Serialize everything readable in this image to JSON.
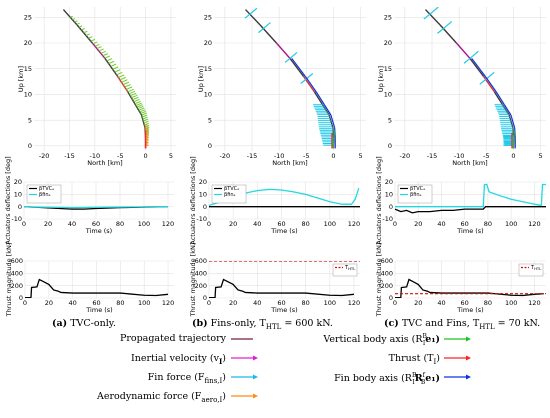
{
  "captions": [
    {
      "tag": "(a)",
      "text": "TVC-only."
    },
    {
      "tag": "(b)",
      "text": "Fins-only, T",
      "sub": "HTL",
      "rest": " = 600 kN."
    },
    {
      "tag": "(c)",
      "text": "TVC and Fins, T",
      "sub": "HTL",
      "rest": " = 70 kN."
    }
  ],
  "legend": {
    "items": [
      {
        "label": "Propagated trajectory",
        "color": "#7a1e3a",
        "kind": "line"
      },
      {
        "label": "Inertial velocity (v",
        "sub": "I",
        "tail": ")",
        "color": "#e020d0",
        "kind": "arrow"
      },
      {
        "label": "Fin force (F",
        "sub": "fins,I",
        "tail": ")",
        "color": "#20b8e8",
        "kind": "arrow"
      },
      {
        "label": "Aerodynamic force (F",
        "sub": "aero,I",
        "tail": ")",
        "color": "#ff8c1a",
        "kind": "arrow"
      },
      {
        "label": "Vertical body axis (R",
        "sup": "B",
        "sub2": "I",
        "tail": "e₁)",
        "color": "#22c022",
        "kind": "arrow"
      },
      {
        "label": "Thrust (T",
        "sub": "I",
        "tail": ")",
        "color": "#ff2020",
        "kind": "arrow"
      },
      {
        "label": "Fin body axis (R",
        "sup": "B",
        "sub2": "I",
        "mid": "R",
        "sup2": "f",
        "sub3": "B",
        "tail": "e₁)",
        "color": "#1030e0",
        "kind": "arrow"
      }
    ]
  },
  "chart_data": [
    {
      "type": "line",
      "id": "traj-a",
      "xlabel": "North [km]",
      "ylabel": "Up [km]",
      "xlim": [
        -22,
        6
      ],
      "ylim": [
        -1,
        27
      ],
      "xticks": [
        -20,
        -15,
        -10,
        -5,
        0,
        5
      ],
      "yticks": [
        0,
        5,
        10,
        15,
        20,
        25
      ],
      "grid": true,
      "series": [
        {
          "x": [
            -16.2,
            -13.5,
            -10.5,
            -8,
            -5.5,
            -3.5,
            -2,
            -0.8,
            -0.1,
            0,
            0
          ],
          "y": [
            26.5,
            23.5,
            20,
            17,
            13.5,
            10.5,
            8,
            6,
            3.5,
            1.5,
            -0.5
          ]
        }
      ]
    },
    {
      "type": "line",
      "id": "traj-b",
      "xlabel": "North [km]",
      "ylabel": "Up [km]",
      "xlim": [
        -22,
        6
      ],
      "ylim": [
        -1,
        27
      ],
      "xticks": [
        -20,
        -15,
        -10,
        -5,
        0,
        5
      ],
      "yticks": [
        0,
        5,
        10,
        15,
        20,
        25
      ],
      "grid": true,
      "series": [
        {
          "x": [
            -16.2,
            -13.5,
            -10.5,
            -8,
            -5.5,
            -3.5,
            -2,
            -0.8,
            -0.1,
            0,
            0
          ],
          "y": [
            26.5,
            23.5,
            20,
            17,
            13.5,
            10.5,
            8,
            6,
            3.5,
            1.5,
            -0.5
          ]
        }
      ]
    },
    {
      "type": "line",
      "id": "traj-c",
      "xlabel": "North [km]",
      "ylabel": "Up [km]",
      "xlim": [
        -22,
        6
      ],
      "ylim": [
        -1,
        27
      ],
      "xticks": [
        -20,
        -15,
        -10,
        -5,
        0,
        5
      ],
      "yticks": [
        0,
        5,
        10,
        15,
        20,
        25
      ],
      "grid": true,
      "series": [
        {
          "x": [
            -16.2,
            -13.5,
            -10.5,
            -8,
            -5.5,
            -3.5,
            -2,
            -0.8,
            -0.1,
            0,
            0
          ],
          "y": [
            26.5,
            23.5,
            20,
            17,
            13.5,
            10.5,
            8,
            6,
            3.5,
            1.5,
            -0.5
          ]
        }
      ]
    },
    {
      "type": "line",
      "id": "defl-a",
      "xlabel": "Time (s)",
      "ylabel": "Actuators deflections [deg]",
      "xlim": [
        0,
        125
      ],
      "ylim": [
        -10,
        20
      ],
      "xticks": [
        0,
        20,
        40,
        60,
        80,
        100,
        120
      ],
      "yticks": [
        -10,
        0,
        10,
        20
      ],
      "grid": true,
      "series": [
        {
          "name": "βTVCₐ",
          "color": "#000000",
          "x": [
            0,
            10,
            20,
            30,
            40,
            50,
            60,
            80,
            100,
            120
          ],
          "y": [
            0,
            -0.5,
            -1,
            -1.5,
            -2,
            -2,
            -1.5,
            -0.8,
            -0.3,
            0
          ]
        },
        {
          "name": "βfinₐ",
          "color": "#22d8e0",
          "x": [
            0,
            10,
            20,
            30,
            40,
            50,
            60,
            80,
            100,
            120
          ],
          "y": [
            0,
            -0.3,
            -0.5,
            -0.6,
            -0.8,
            -0.7,
            -0.5,
            -0.3,
            -0.2,
            0
          ]
        }
      ]
    },
    {
      "type": "line",
      "id": "defl-b",
      "xlabel": "Time (s)",
      "ylabel": "Actuators deflections [deg]",
      "xlim": [
        0,
        125
      ],
      "ylim": [
        -10,
        20
      ],
      "xticks": [
        0,
        20,
        40,
        60,
        80,
        100,
        120
      ],
      "yticks": [
        -10,
        0,
        10,
        20
      ],
      "grid": true,
      "series": [
        {
          "name": "βTVCₐ",
          "color": "#000000",
          "x": [
            0,
            125
          ],
          "y": [
            0,
            0
          ]
        },
        {
          "name": "βfinₐ",
          "color": "#22d8e0",
          "x": [
            0,
            10,
            20,
            30,
            40,
            50,
            60,
            70,
            80,
            90,
            100,
            110,
            118,
            121,
            124
          ],
          "y": [
            1,
            4,
            8,
            11,
            13,
            14,
            13.5,
            12,
            10,
            7,
            4,
            2,
            2,
            6,
            15
          ]
        }
      ]
    },
    {
      "type": "line",
      "id": "defl-c",
      "xlabel": "Time (s)",
      "ylabel": "Actuators deflections [deg]",
      "xlim": [
        0,
        130
      ],
      "ylim": [
        -10,
        20
      ],
      "xticks": [
        0,
        20,
        40,
        60,
        80,
        100,
        120
      ],
      "yticks": [
        -10,
        0,
        10,
        20
      ],
      "grid": true,
      "series": [
        {
          "name": "βTVCₐ",
          "color": "#000000",
          "x": [
            0,
            5,
            10,
            15,
            20,
            30,
            40,
            50,
            60,
            70,
            76,
            78,
            100,
            126,
            130
          ],
          "y": [
            -2,
            -4,
            -3,
            -5,
            -4,
            -4,
            -3,
            -3,
            -2,
            -2,
            -2,
            0,
            0,
            0,
            0
          ]
        },
        {
          "name": "βfinₐ",
          "color": "#22d8e0",
          "x": [
            0,
            76,
            77,
            79,
            81,
            90,
            100,
            110,
            120,
            126,
            127,
            130
          ],
          "y": [
            0,
            0,
            18,
            18,
            12,
            9,
            6,
            4,
            2,
            1,
            18,
            18
          ]
        }
      ]
    },
    {
      "type": "line",
      "id": "thrust-a",
      "xlabel": "Time (s)",
      "ylabel": "Thrust magnitude [kN]",
      "xlim": [
        0,
        125
      ],
      "ylim": [
        0,
        600
      ],
      "xticks": [
        0,
        20,
        40,
        60,
        80,
        100,
        120
      ],
      "yticks": [
        0,
        200,
        400,
        600
      ],
      "grid": true,
      "series": [
        {
          "name": "Thrust",
          "color": "#000000",
          "x": [
            0,
            5,
            5.5,
            10,
            12,
            15,
            20,
            24,
            28,
            30,
            40,
            60,
            80,
            100,
            110,
            120
          ],
          "y": [
            5,
            5,
            170,
            180,
            300,
            270,
            220,
            130,
            110,
            90,
            80,
            80,
            80,
            45,
            40,
            60
          ]
        }
      ]
    },
    {
      "type": "line",
      "id": "thrust-b",
      "xlabel": "Time (s)",
      "ylabel": "Thrust magnitude [kN]",
      "xlim": [
        0,
        125
      ],
      "ylim": [
        0,
        600
      ],
      "xticks": [
        0,
        20,
        40,
        60,
        80,
        100,
        120
      ],
      "yticks": [
        0,
        200,
        400,
        600
      ],
      "grid": true,
      "series": [
        {
          "name": "Thrust",
          "color": "#000000",
          "x": [
            0,
            5,
            5.5,
            10,
            12,
            15,
            20,
            24,
            28,
            30,
            40,
            60,
            80,
            100,
            110,
            120
          ],
          "y": [
            5,
            5,
            170,
            180,
            300,
            270,
            220,
            130,
            110,
            90,
            80,
            80,
            80,
            45,
            40,
            60
          ]
        },
        {
          "name": "T",
          "nameSub": "HTL",
          "color": "#d01010",
          "dash": true,
          "x": [
            0,
            125
          ],
          "y": [
            600,
            600
          ]
        }
      ]
    },
    {
      "type": "line",
      "id": "thrust-c",
      "xlabel": "Time (s)",
      "ylabel": "Thrust magnitude [kN]",
      "xlim": [
        0,
        130
      ],
      "ylim": [
        0,
        600
      ],
      "xticks": [
        0,
        20,
        40,
        60,
        80,
        100,
        120
      ],
      "yticks": [
        0,
        200,
        400,
        600
      ],
      "grid": true,
      "series": [
        {
          "name": "Thrust",
          "color": "#000000",
          "x": [
            0,
            5,
            5.5,
            10,
            12,
            15,
            20,
            24,
            28,
            30,
            40,
            60,
            80,
            100,
            110,
            120,
            128
          ],
          "y": [
            5,
            5,
            170,
            180,
            300,
            270,
            220,
            130,
            110,
            90,
            80,
            80,
            80,
            45,
            40,
            60,
            70
          ]
        },
        {
          "name": "T",
          "nameSub": "HTL",
          "color": "#d01010",
          "dash": true,
          "x": [
            0,
            130
          ],
          "y": [
            70,
            70
          ]
        }
      ]
    }
  ]
}
